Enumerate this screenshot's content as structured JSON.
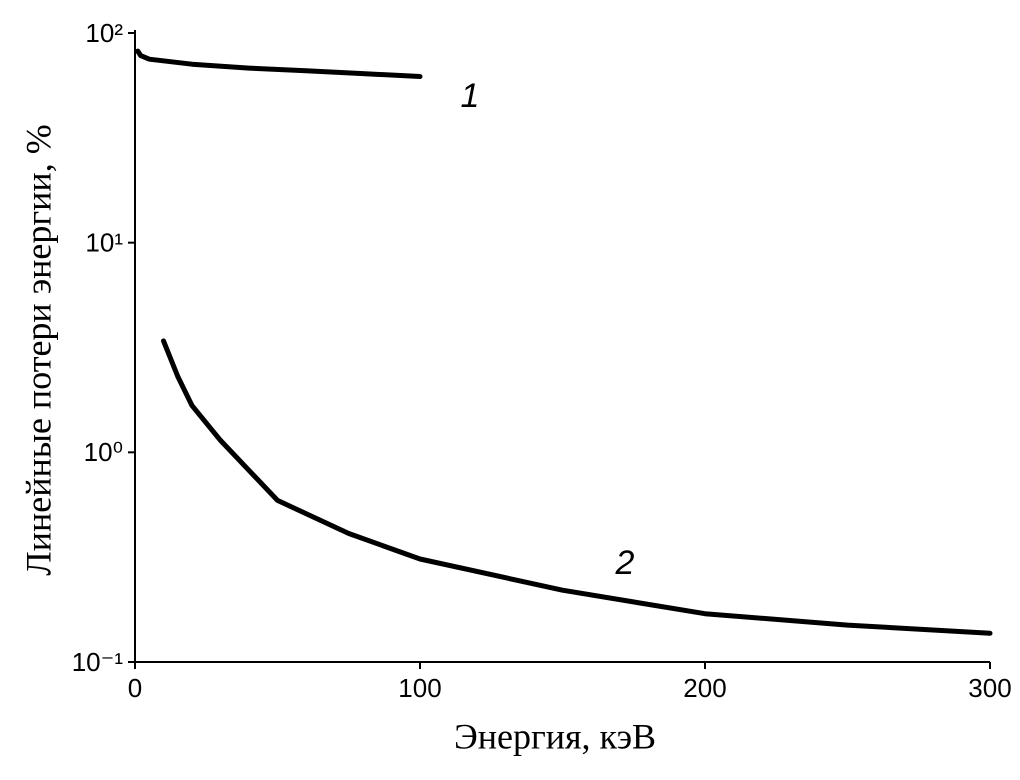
{
  "chart_data": {
    "type": "line",
    "xlabel": "Энергия, кэВ",
    "ylabel": "Линейные потери энергии, %",
    "xlim": [
      0,
      300
    ],
    "xticks": [
      0,
      100,
      200,
      300
    ],
    "ylim": [
      0.1,
      100
    ],
    "log_y": true,
    "yticks": [
      {
        "value": 100,
        "label": "10²"
      },
      {
        "value": 10,
        "label": "10¹"
      },
      {
        "value": 1,
        "label": "10⁰"
      },
      {
        "value": 0.1,
        "label": "10⁻¹"
      }
    ],
    "series": [
      {
        "name": "1",
        "color": "#000000",
        "x": [
          1,
          2,
          5,
          20,
          40,
          60,
          80,
          100
        ],
        "values": [
          82,
          78,
          75,
          71,
          68,
          66,
          64,
          62
        ]
      },
      {
        "name": "2",
        "color": "#000000",
        "x": [
          10,
          15,
          20,
          30,
          50,
          75,
          100,
          150,
          200,
          250,
          300
        ],
        "values": [
          3.4,
          2.3,
          1.67,
          1.14,
          0.59,
          0.41,
          0.31,
          0.22,
          0.17,
          0.15,
          0.137
        ]
      }
    ]
  }
}
